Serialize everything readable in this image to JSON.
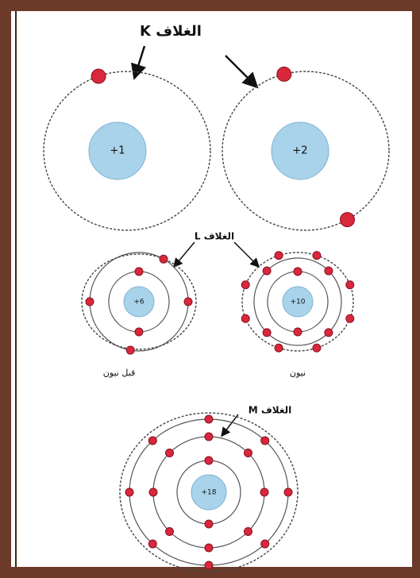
{
  "labels": {
    "k_shell": "الغلاف K",
    "l_shell": "الغلاف L",
    "m_shell": "الغلاف M"
  },
  "atoms": [
    {
      "charge": "+1"
    },
    {
      "charge": "+2"
    },
    {
      "charge": "+6",
      "name": "قبل نيون"
    },
    {
      "charge": "+10",
      "name": "نيون"
    },
    {
      "charge": "+18"
    }
  ]
}
